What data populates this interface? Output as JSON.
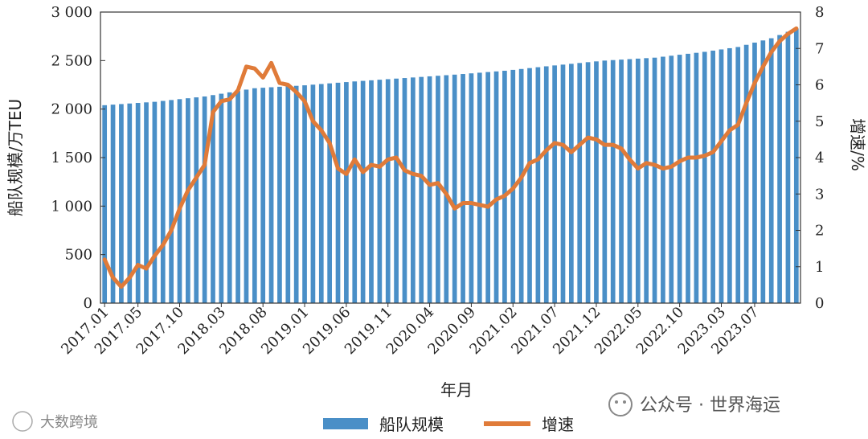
{
  "chart_data": {
    "type": "bar+line",
    "xlabel": "年月",
    "ylabel_left": "船队规模/万TEU",
    "ylabel_right": "增速/%",
    "ylim_left": [
      0,
      3000
    ],
    "ylim_right": [
      0,
      8
    ],
    "yticks_left": [
      "0",
      "500",
      "1 000",
      "1 500",
      "2 000",
      "2 500",
      "3 000"
    ],
    "yticks_right": [
      "0",
      "1",
      "2",
      "3",
      "4",
      "5",
      "6",
      "7",
      "8"
    ],
    "x_tick_labels": [
      "2017.01",
      "2017.05",
      "2017.10",
      "2018.03",
      "2018.08",
      "2019.01",
      "2019.06",
      "2019.11",
      "2020.04",
      "2020.09",
      "2021.02",
      "2021.07",
      "2021.12",
      "2022.05",
      "2022.10",
      "2023.03",
      "2023.07"
    ],
    "x_tick_index": [
      0,
      4,
      9,
      14,
      19,
      24,
      29,
      34,
      39,
      44,
      49,
      54,
      59,
      64,
      69,
      74,
      78
    ],
    "n_months": 84,
    "grid": false,
    "legend_position": "bottom-center",
    "series": [
      {
        "name": "船队规模",
        "type": "bar",
        "axis": "left",
        "color": "#4a8fc7",
        "anchor_index": [
          0,
          6,
          12,
          18,
          24,
          30,
          36,
          42,
          48,
          54,
          60,
          66,
          72,
          76,
          80,
          83
        ],
        "anchor_values": [
          2040,
          2075,
          2130,
          2215,
          2245,
          2285,
          2320,
          2355,
          2395,
          2450,
          2500,
          2530,
          2590,
          2640,
          2730,
          2830
        ]
      },
      {
        "name": "增速",
        "type": "line",
        "axis": "right",
        "color": "#e07b39",
        "values": [
          1.2,
          0.7,
          0.45,
          0.7,
          1.05,
          0.95,
          1.3,
          1.6,
          2.0,
          2.6,
          3.1,
          3.45,
          3.8,
          5.25,
          5.55,
          5.6,
          5.85,
          6.5,
          6.45,
          6.2,
          6.6,
          6.05,
          6.0,
          5.8,
          5.55,
          5.0,
          4.75,
          4.4,
          3.7,
          3.55,
          3.95,
          3.6,
          3.8,
          3.75,
          3.95,
          4.0,
          3.65,
          3.55,
          3.5,
          3.25,
          3.3,
          3.0,
          2.6,
          2.75,
          2.75,
          2.7,
          2.65,
          2.85,
          2.95,
          3.15,
          3.45,
          3.85,
          3.95,
          4.2,
          4.4,
          4.35,
          4.15,
          4.35,
          4.55,
          4.5,
          4.35,
          4.35,
          4.25,
          3.95,
          3.7,
          3.85,
          3.8,
          3.7,
          3.75,
          3.9,
          4.0,
          4.0,
          4.05,
          4.15,
          4.45,
          4.75,
          4.9,
          5.5,
          6.05,
          6.5,
          6.9,
          7.2,
          7.4,
          7.55
        ]
      }
    ]
  },
  "legend": {
    "bar_label": "船队规模",
    "line_label": "增速"
  },
  "watermarks": {
    "left": "大数跨境",
    "right": "公众号 · 世界海运"
  }
}
